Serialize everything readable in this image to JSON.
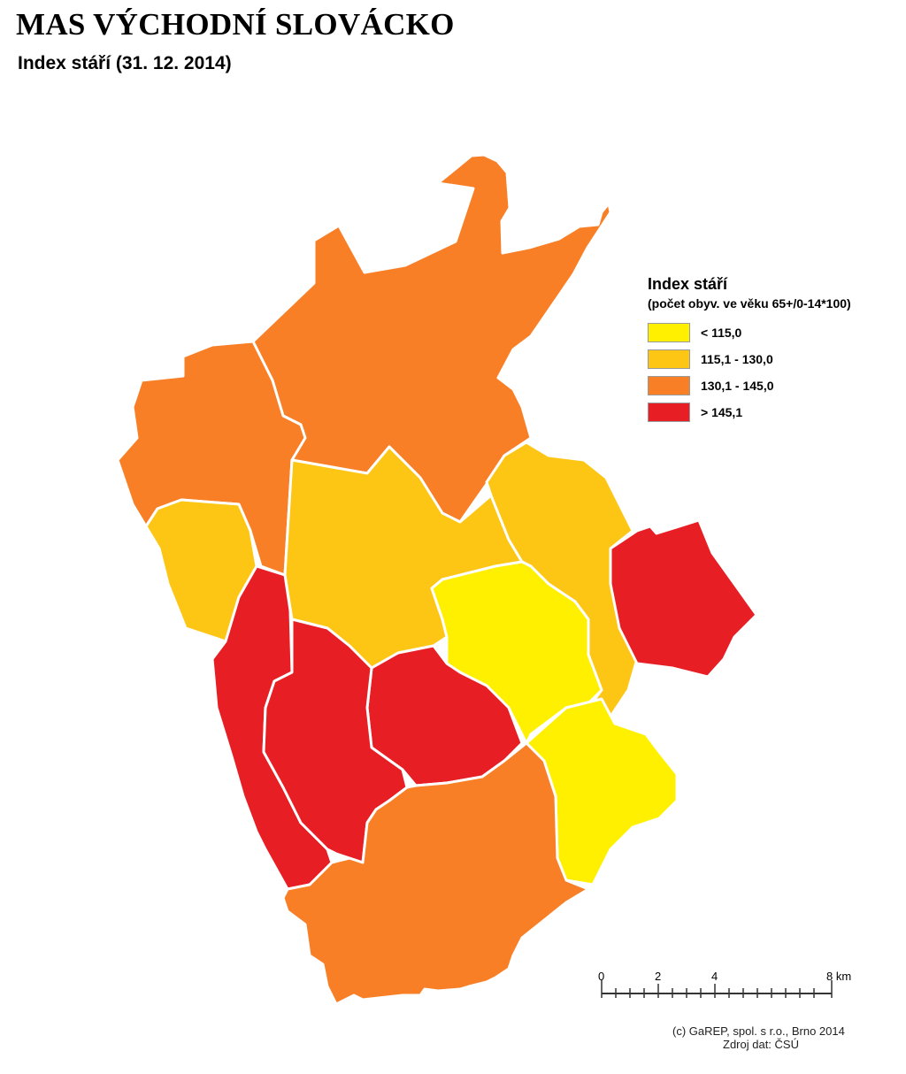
{
  "header": {
    "title": "MAS VÝCHODNÍ SLOVÁCKO",
    "subtitle": "Index stáří (31. 12. 2014)"
  },
  "legend": {
    "title": "Index stáří",
    "subtitle": "(počet obyv. ve věku 65+/0-14*100)",
    "classes": [
      {
        "label": "< 115,0",
        "color": "#fff000"
      },
      {
        "label": "115,1 - 130,0",
        "color": "#fdc514"
      },
      {
        "label": "130,1 - 145,0",
        "color": "#f97f27"
      },
      {
        "label": "> 145,1",
        "color": "#e81e25"
      }
    ]
  },
  "scalebar": {
    "labels": [
      "0",
      "2",
      "4",
      "8 km"
    ]
  },
  "credits": {
    "line1": "(c) GaREP, spol. s r.o., Brno 2014",
    "line2": "Zdroj dat: ČSÚ"
  }
}
